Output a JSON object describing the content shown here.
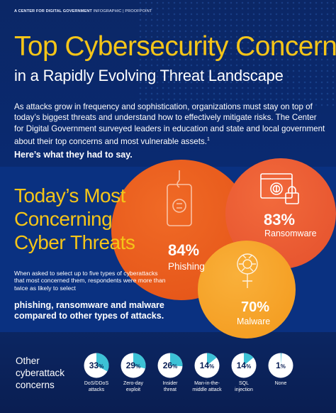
{
  "header": {
    "brand_bold": "A CENTER FOR DIGITAL GOVERNMENT",
    "brand_rest": " INFOGRAPHIC | PROOFPOINT"
  },
  "title": {
    "line1": "Top Cybersecurity Concerns",
    "line2": "in a Rapidly Evolving Threat Landscape"
  },
  "intro": {
    "text": "As attacks grow in frequency and sophistication, organizations must stay on top of today’s biggest threats and understand how to effectively mitigate risks. The Center for Digital Government surveyed leaders in education and state and local government about their top concerns and most vulnerable assets.",
    "footnote": "1",
    "say": "Here’s what they had to say."
  },
  "concerns": {
    "title_lines": [
      "Today’s Most",
      "Concerning",
      "Cyber Threats"
    ],
    "description": "When asked to select up to five types of cyberattacks that most concerned them, respondents were more than twice as likely to select",
    "description_bold": "phishing, ransomware and malware compared to other types of attacks."
  },
  "top_threats": [
    {
      "name": "Phishing",
      "value": "84%",
      "icon": "phishing-hook-icon",
      "color": "#e85a1b"
    },
    {
      "name": "Ransomware",
      "value": "83%",
      "icon": "fingerprint-lock-icon",
      "color": "#ea5a33"
    },
    {
      "name": "Malware",
      "value": "70%",
      "icon": "bug-circuit-icon",
      "color": "#f5a12a"
    }
  ],
  "other": {
    "label_lines": [
      "Other",
      "cyberattack",
      "concerns"
    ],
    "items": [
      {
        "value": "33",
        "suffix": "%",
        "fraction": 0.33,
        "label": [
          "DoS/DDoS",
          "attacks"
        ]
      },
      {
        "value": "29",
        "suffix": "%",
        "fraction": 0.29,
        "label": [
          "Zero-day",
          "exploit"
        ]
      },
      {
        "value": "26",
        "suffix": "%",
        "fraction": 0.26,
        "label": [
          "Insider",
          "threat"
        ]
      },
      {
        "value": "14",
        "suffix": "%",
        "fraction": 0.14,
        "label": [
          "Man-in-the-",
          "middle attack"
        ]
      },
      {
        "value": "14",
        "suffix": "%",
        "fraction": 0.14,
        "label": [
          "SQL",
          "injection"
        ]
      },
      {
        "value": "1",
        "suffix": "%",
        "fraction": 0.01,
        "label": [
          "None"
        ]
      }
    ],
    "colors": {
      "filled": "#3cc2d6",
      "empty": "#ffffff"
    }
  }
}
